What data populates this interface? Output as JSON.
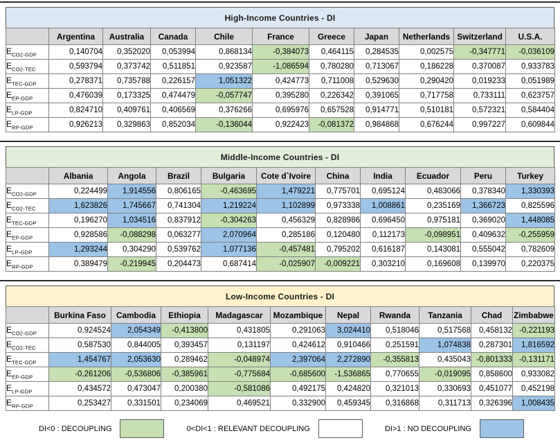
{
  "colors": {
    "decoupling_green": "#c6e0b4",
    "no_decoupling_blue": "#9dc3e6",
    "column_header_grey": "#d9d9d9"
  },
  "row_label_base": "E",
  "tables": [
    {
      "id": "high-income",
      "title": "High-Income Countries - DI",
      "title_bg": "#dce8f4",
      "countries": [
        "Argentina",
        "Australia",
        "Canada",
        "Chile",
        "France",
        "Greece",
        "Japan",
        "Netherlands",
        "Switzerland",
        "U.S.A."
      ],
      "rows": [
        {
          "sub": "CO2-GDP",
          "values": [
            "0,140704",
            "0,352020",
            "0,053994",
            "0,868134",
            "-0,384073",
            "0,464115",
            "0,284535",
            "0,002575",
            "-0,347771",
            "-0,036109"
          ]
        },
        {
          "sub": "CO2-TEC",
          "values": [
            "0,593794",
            "0,373742",
            "0,511851",
            "0,923587",
            "-1,086594",
            "0,780280",
            "0,713067",
            "0,186228",
            "0,370087",
            "0,933783"
          ]
        },
        {
          "sub": "TEC-GDP",
          "values": [
            "0,278371",
            "0,735788",
            "0,226157",
            "1,051322",
            "0,424773",
            "0,711008",
            "0,529630",
            "0,290420",
            "0,019233",
            "0,051989"
          ]
        },
        {
          "sub": "EP-GDP",
          "values": [
            "0,476039",
            "0,173325",
            "0,474479",
            "-0,057747",
            "0,395280",
            "0,226342",
            "0,391065",
            "0,717758",
            "0,733111",
            "0,623757"
          ]
        },
        {
          "sub": "LP-GDP",
          "values": [
            "0,824710",
            "0,409761",
            "0,406569",
            "0,376266",
            "0,695976",
            "0,657528",
            "0,914771",
            "0,510181",
            "0,572321",
            "0,584404"
          ]
        },
        {
          "sub": "RP-GDP",
          "values": [
            "0,926213",
            "0,329863",
            "0,852034",
            "-0,136044",
            "0,922423",
            "-0,081372",
            "0,984868",
            "0,676244",
            "0,997227",
            "0,609844"
          ]
        }
      ]
    },
    {
      "id": "middle-income",
      "title": "Middle-Income Countries - DI",
      "title_bg": "#e2efda",
      "countries": [
        "Albania",
        "Angola",
        "Brazil",
        "Bulgaria",
        "Cote d`Ivoire",
        "China",
        "India",
        "Ecuador",
        "Peru",
        "Turkey"
      ],
      "rows": [
        {
          "sub": "CO2-GDP",
          "values": [
            "0,224499",
            "1,914556",
            "0,806165",
            "-0,463695",
            "1,479221",
            "0,775701",
            "0,695124",
            "0,483066",
            "0,378340",
            "1,330393"
          ]
        },
        {
          "sub": "CO2-TEC",
          "values": [
            "1,623826",
            "1,745667",
            "0,741304",
            "1,219224",
            "1,102899",
            "0,973338",
            "1,008861",
            "0,235169",
            "1,366723",
            "0,825596"
          ]
        },
        {
          "sub": "TEC-GDP",
          "values": [
            "0,196270",
            "1,034516",
            "0,837912",
            "-0,304263",
            "0,456329",
            "0,828986",
            "0,696450",
            "0,975181",
            "0,369020",
            "1,448085"
          ]
        },
        {
          "sub": "EP-GDP",
          "values": [
            "0,928586",
            "-0,088298",
            "0,063277",
            "2,070964",
            "0,285186",
            "0,120480",
            "0,112173",
            "-0,098951",
            "0,409632",
            "-0,255959"
          ]
        },
        {
          "sub": "LP-GDP",
          "values": [
            "1,293244",
            "0,304290",
            "0,539762",
            "1,077136",
            "-0,457481",
            "0,795202",
            "0,616187",
            "0,143081",
            "0,555042",
            "0,782609"
          ]
        },
        {
          "sub": "RP-GDP",
          "values": [
            "0,389479",
            "-0,219945",
            "0,204473",
            "0,687414",
            "-0,025907",
            "-0,009221",
            "0,303210",
            "0,169608",
            "0,139970",
            "0,220375"
          ]
        }
      ]
    },
    {
      "id": "low-income",
      "title": "Low-Income Countries - DI",
      "title_bg": "#fff2cc",
      "countries": [
        "Burkina Faso",
        "Cambodia",
        "Ethiopia",
        "Madagascar",
        "Mozambique",
        "Nepal",
        "Rwanda",
        "Tanzania",
        "Chad",
        "Zimbabwe"
      ],
      "rows": [
        {
          "sub": "CO2-GDP",
          "values": [
            "0,924524",
            "2,054349",
            "-0,413800",
            "0,431805",
            "0,291063",
            "3,024410",
            "0,518046",
            "0,517568",
            "0,458132",
            "-0,221193"
          ]
        },
        {
          "sub": "CO2-TEC",
          "values": [
            "0,587530",
            "0,844005",
            "0,393457",
            "0,131197",
            "0,424612",
            "0,910466",
            "0,251591",
            "1,074838",
            "0,287301",
            "1,816592"
          ]
        },
        {
          "sub": "TEC-GDP",
          "values": [
            "1,454767",
            "2,053630",
            "0,289462",
            "-0,048974",
            "2,397064",
            "2,272890",
            "-0,355813",
            "0,435043",
            "-0,801333",
            "-0,131171"
          ]
        },
        {
          "sub": "EP-GDP",
          "values": [
            "-0,261206",
            "-0,536806",
            "-0,385961",
            "-0,775684",
            "-0,685600",
            "-1,536865",
            "0,770655",
            "-0,019095",
            "0,858600",
            "0,933082"
          ]
        },
        {
          "sub": "LP-GDP",
          "values": [
            "0,434572",
            "0,473047",
            "0,200380",
            "-0,581086",
            "0,492175",
            "0,424820",
            "0,321013",
            "0,330693",
            "0,451077",
            "0,452198"
          ]
        },
        {
          "sub": "RP-GDP",
          "values": [
            "0,253427",
            "0,331501",
            "0,234069",
            "0,469521",
            "0,332900",
            "0,459345",
            "0,316868",
            "0,311713",
            "0,326396",
            "1,008435"
          ]
        }
      ]
    }
  ],
  "legend": {
    "items": [
      {
        "label": "DI<0 : DECOUPLING",
        "color": "#c6e0b4"
      },
      {
        "label": "0<DI<1 : RELEVANT DECOUPLING",
        "color": "#ffffff"
      },
      {
        "label": "DI>1 : NO DECOUPLING",
        "color": "#9dc3e6"
      }
    ]
  }
}
